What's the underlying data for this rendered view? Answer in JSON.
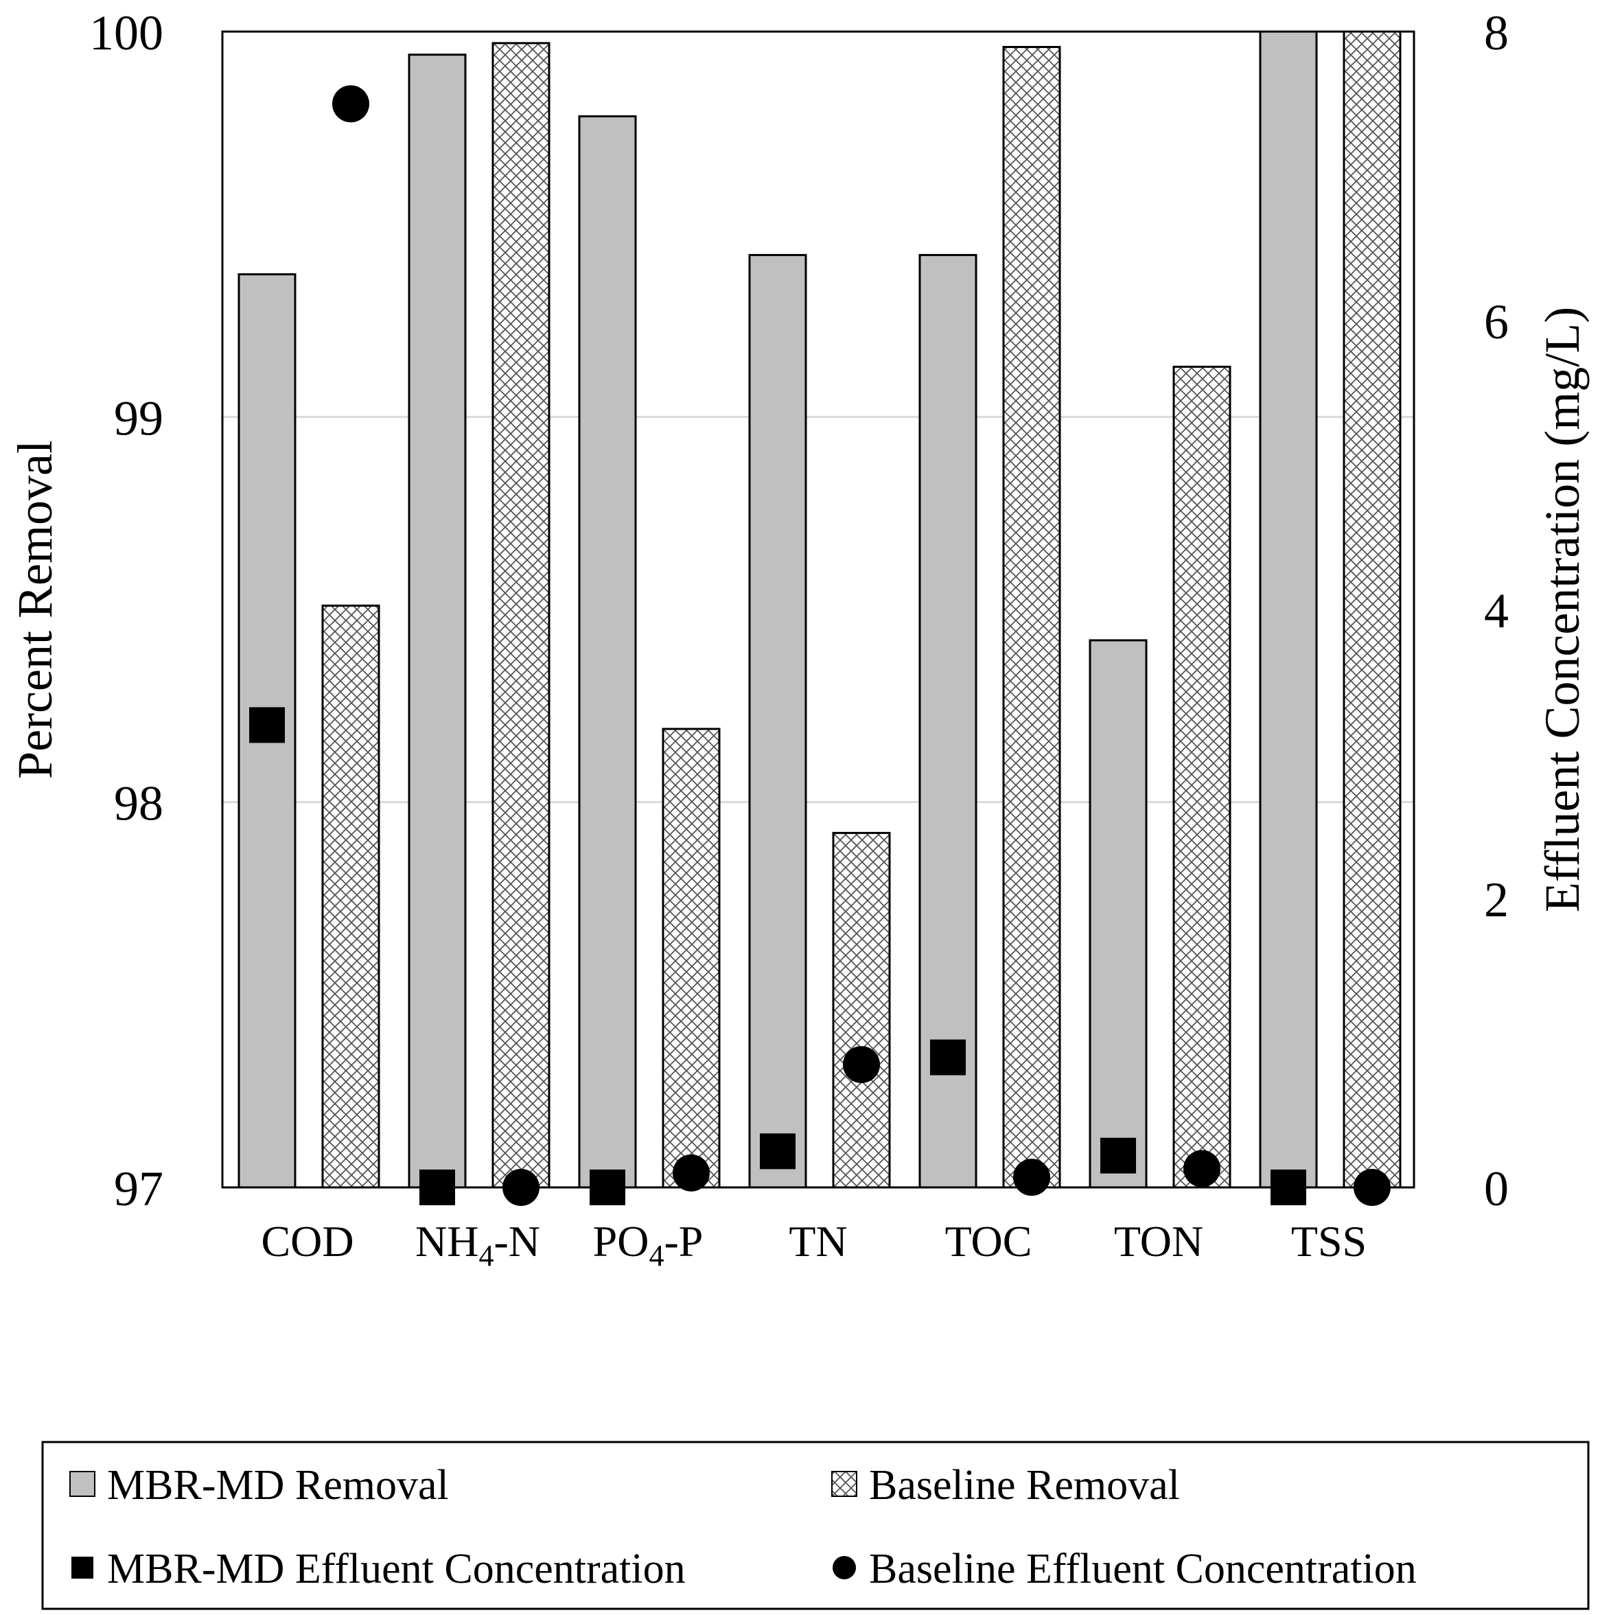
{
  "chart_data": {
    "type": "bar",
    "categories": [
      "COD",
      "NH4-N",
      "PO4-P",
      "TN",
      "TOC",
      "TON",
      "TSS"
    ],
    "category_labels": [
      {
        "base": "COD",
        "sub": "",
        "tail": ""
      },
      {
        "base": "NH",
        "sub": "4",
        "tail": "-N"
      },
      {
        "base": "PO",
        "sub": "4",
        "tail": "-P"
      },
      {
        "base": "TN",
        "sub": "",
        "tail": ""
      },
      {
        "base": "TOC",
        "sub": "",
        "tail": ""
      },
      {
        "base": "TON",
        "sub": "",
        "tail": ""
      },
      {
        "base": "TSS",
        "sub": "",
        "tail": ""
      }
    ],
    "ylabel": "Percent Removal",
    "y2label": "Effluent Concentration (mg/L)",
    "ylim": [
      97,
      100
    ],
    "y2lim": [
      0,
      8
    ],
    "yticks": [
      97,
      98,
      99,
      100
    ],
    "y2ticks": [
      0,
      2,
      4,
      6,
      8
    ],
    "grid": true,
    "legend_position": "bottom",
    "series": [
      {
        "name": "MBR-MD Removal",
        "kind": "bar",
        "axis": "left",
        "pattern": "solid",
        "color": "#c0c0c0",
        "values": [
          99.37,
          99.94,
          99.78,
          99.42,
          99.42,
          98.42,
          100.0
        ]
      },
      {
        "name": "Baseline Removal",
        "kind": "bar",
        "axis": "left",
        "pattern": "crosshatch",
        "color": "#ffffff",
        "values": [
          98.51,
          99.97,
          98.19,
          97.92,
          99.96,
          99.13,
          100.0
        ]
      },
      {
        "name": "MBR-MD Effluent Concentration",
        "kind": "marker",
        "marker": "square",
        "axis": "right",
        "color": "#000000",
        "values": [
          3.2,
          0.0,
          0.0,
          0.25,
          0.9,
          0.22,
          0.0
        ]
      },
      {
        "name": "Baseline Effluent Concentration",
        "kind": "marker",
        "marker": "circle",
        "axis": "right",
        "color": "#000000",
        "values": [
          7.5,
          0.0,
          0.1,
          0.85,
          0.07,
          0.13,
          0.0
        ]
      }
    ],
    "legend": [
      {
        "label": "MBR-MD Removal",
        "symbol": "gray-box"
      },
      {
        "label": "Baseline Removal",
        "symbol": "hatch-box"
      },
      {
        "label": "MBR-MD Effluent Concentration",
        "symbol": "square"
      },
      {
        "label": "Baseline Effluent Concentration",
        "symbol": "circle"
      }
    ]
  }
}
